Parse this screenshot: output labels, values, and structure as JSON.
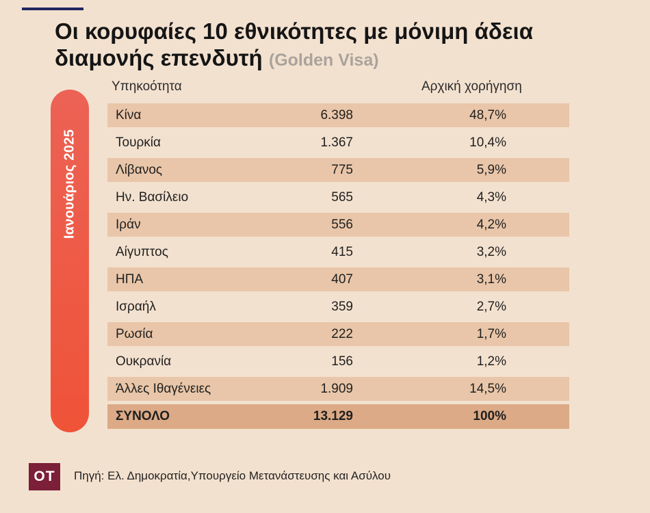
{
  "title": "Οι κορυφαίες 10 εθνικότητες με μόνιμη άδεια διαμονής επενδυτή",
  "subtitle": "(Golden Visa)",
  "period_label": "Ιανουάριος 2025",
  "headers": {
    "country": "Υπηκοότητα",
    "share": "Αρχική χορήγηση"
  },
  "rows": [
    {
      "country": "Κίνα",
      "value": "6.398",
      "share": "48,7%"
    },
    {
      "country": "Τουρκία",
      "value": "1.367",
      "share": "10,4%"
    },
    {
      "country": "Λίβανος",
      "value": "775",
      "share": "5,9%"
    },
    {
      "country": "Ην. Βασίλειο",
      "value": "565",
      "share": "4,3%"
    },
    {
      "country": "Ιράν",
      "value": "556",
      "share": "4,2%"
    },
    {
      "country": "Αίγυπτος",
      "value": "415",
      "share": "3,2%"
    },
    {
      "country": "ΗΠΑ",
      "value": "407",
      "share": "3,1%"
    },
    {
      "country": "Ισραήλ",
      "value": "359",
      "share": "2,7%"
    },
    {
      "country": "Ρωσία",
      "value": "222",
      "share": "1,7%"
    },
    {
      "country": "Ουκρανία",
      "value": "156",
      "share": "1,2%"
    },
    {
      "country": "Άλλες Ιθαγένειες",
      "value": "1.909",
      "share": "14,5%"
    }
  ],
  "total": {
    "country": "ΣΥΝΟΛΟ",
    "value": "13.129",
    "share": "100%"
  },
  "logo_text": "OT",
  "source": "Πηγή: Ελ. Δημοκρατία,Υπουργείο Μετανάστευσης και Ασύλου",
  "colors": {
    "background": "#f3e1cf",
    "row_shade": "#e9c6a9",
    "total_shade": "#dcaa86",
    "pill": "#ef5338",
    "logo": "#7c1f38",
    "top_rule": "#1f2660"
  },
  "chart_data": {
    "type": "table",
    "title": "Οι κορυφαίες 10 εθνικότητες με μόνιμη άδεια διαμονής επενδυτή",
    "subtitle": "(Golden Visa)",
    "period": "Ιανουάριος 2025",
    "columns": [
      "Υπηκοότητα",
      "",
      "Αρχική χορήγηση"
    ],
    "categories": [
      "Κίνα",
      "Τουρκία",
      "Λίβανος",
      "Ην. Βασίλειο",
      "Ιράν",
      "Αίγυπτος",
      "ΗΠΑ",
      "Ισραήλ",
      "Ρωσία",
      "Ουκρανία",
      "Άλλες Ιθαγένειες"
    ],
    "series": [
      {
        "values": [
          6398,
          1367,
          775,
          565,
          556,
          415,
          407,
          359,
          222,
          156,
          1909
        ]
      },
      {
        "name": "Αρχική χορήγηση",
        "values": [
          48.7,
          10.4,
          5.9,
          4.3,
          4.2,
          3.2,
          3.1,
          2.7,
          1.7,
          1.2,
          14.5
        ]
      }
    ],
    "total": {
      "label": "ΣΥΝΟΛΟ",
      "value": 13129,
      "share": 100
    }
  }
}
